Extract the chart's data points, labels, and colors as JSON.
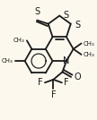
{
  "bg_color": "#fcf8ee",
  "line_color": "#1a1a1a",
  "lw": 1.3,
  "figsize": [
    1.08,
    1.34
  ],
  "dpi": 100,
  "xlim": [
    0,
    108
  ],
  "ylim": [
    0,
    134
  ]
}
